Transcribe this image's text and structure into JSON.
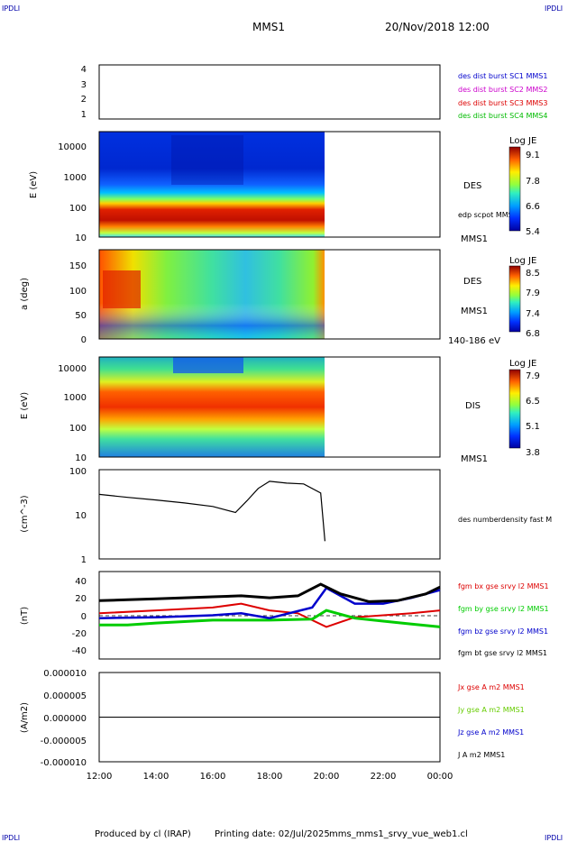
{
  "corner_labels": {
    "tl": "IPDLI",
    "tr": "IPDLI",
    "bl": "IPDLI",
    "br": "IPDLI"
  },
  "header": {
    "spacecraft": "MMS1",
    "datetime": "20/Nov/2018 12:00"
  },
  "footer": {
    "produced_by": "Produced by cl (IRAP)",
    "printing_date": "Printing date: 02/Jul/2025",
    "filename": "mms_mms1_srvy_vue_web1.cl"
  },
  "time_axis": {
    "ticks": [
      "12:00",
      "14:00",
      "16:00",
      "18:00",
      "20:00",
      "22:00",
      "00:00"
    ],
    "start_hour": 12,
    "end_hour": 24
  },
  "panels": {
    "burst": {
      "yticks": [
        "4",
        "3",
        "2",
        "1"
      ],
      "legend": [
        {
          "label": "des dist burst SC1 MMS1",
          "color": "#0000cc"
        },
        {
          "label": "des dist burst SC2 MMS2",
          "color": "#cc00cc"
        },
        {
          "label": "des dist burst SC3 MMS3",
          "color": "#dd0000"
        },
        {
          "label": "des dist burst SC4 MMS4",
          "color": "#00bb00"
        }
      ]
    },
    "des_energy": {
      "ylabel": "E (eV)",
      "yticks": [
        "10000",
        "1000",
        "100",
        "10"
      ],
      "label": "DES",
      "label2": "edp scpot MMS1",
      "label3": "MMS1",
      "colorbar": {
        "title": "Log JE",
        "ticks": [
          "9.1",
          "7.8",
          "6.6",
          "5.4"
        ],
        "min": 5.4,
        "max": 9.1
      }
    },
    "des_pitch": {
      "ylabel": "a (deg)",
      "yticks": [
        "150",
        "100",
        "50",
        "0"
      ],
      "label": "DES",
      "label2": "MMS1",
      "label3": "140-186 eV",
      "colorbar": {
        "title": "Log JE",
        "ticks": [
          "8.5",
          "7.9",
          "7.4",
          "6.8"
        ],
        "min": 6.8,
        "max": 8.5
      }
    },
    "dis_energy": {
      "ylabel": "E (eV)",
      "yticks": [
        "10000",
        "1000",
        "100",
        "10"
      ],
      "label": "DIS",
      "label2": "MMS1",
      "colorbar": {
        "title": "Log JE",
        "ticks": [
          "7.9",
          "6.5",
          "5.1",
          "3.8"
        ],
        "min": 3.8,
        "max": 7.9
      }
    },
    "density": {
      "ylabel": "(cm^-3)",
      "yticks": [
        "100",
        "10",
        "1"
      ],
      "legend": "des numberdensity fast M"
    },
    "bfield": {
      "ylabel": "(nT)",
      "yticks": [
        "40",
        "20",
        "0",
        "-20",
        "-40"
      ],
      "legend": [
        {
          "label": "fgm bx gse srvy l2 MMS1",
          "color": "#dd0000"
        },
        {
          "label": "fgm by gse srvy l2 MMS1",
          "color": "#00cc00"
        },
        {
          "label": "fgm bz gse srvy l2 MMS1",
          "color": "#0000cc"
        },
        {
          "label": "fgm bt gse srvy l2 MMS1",
          "color": "#000000"
        }
      ]
    },
    "current": {
      "ylabel": "(A/m2)",
      "yticks": [
        "0.000010",
        "0.000005",
        "0.000000",
        "-0.000005",
        "-0.000010"
      ],
      "legend": [
        {
          "label": "Jx gse A m2 MMS1",
          "color": "#dd0000"
        },
        {
          "label": "Jy gse A m2 MMS1",
          "color": "#66cc00"
        },
        {
          "label": "Jz gse A m2 MMS1",
          "color": "#0000cc"
        },
        {
          "label": "J A m2 MMS1",
          "color": "#000000"
        }
      ]
    }
  },
  "chart_data": [
    {
      "type": "line",
      "name": "density",
      "x": [
        12.0,
        13.0,
        14.0,
        15.0,
        16.0,
        16.8,
        17.2,
        17.6,
        18.0,
        18.6,
        19.2,
        19.8,
        19.95
      ],
      "values": [
        28,
        24,
        21,
        18,
        15,
        11,
        20,
        38,
        55,
        50,
        48,
        30,
        2.5
      ],
      "ylim": [
        1,
        100
      ],
      "scale": "log"
    },
    {
      "type": "line",
      "name": "fgm bt gse srvy l2 MMS1",
      "x": [
        12.0,
        13.0,
        14.0,
        15.0,
        16.0,
        17.0,
        18.0,
        19.0,
        19.8,
        20.5,
        21.5,
        22.5,
        23.5,
        24.0
      ],
      "values": [
        15,
        16,
        17,
        18,
        19,
        20,
        18,
        20,
        32,
        22,
        14,
        15,
        22,
        29
      ],
      "ylim": [
        -45,
        45
      ]
    },
    {
      "type": "line",
      "name": "fgm bx gse srvy l2 MMS1",
      "x": [
        12.0,
        14.0,
        16.0,
        17.0,
        18.0,
        19.0,
        20.0,
        21.0,
        22.0,
        23.0,
        24.0
      ],
      "values": [
        2,
        5,
        8,
        12,
        5,
        2,
        -12,
        -2,
        0,
        2,
        5
      ]
    },
    {
      "type": "line",
      "name": "fgm by gse srvy l2 MMS1",
      "x": [
        12.0,
        13.0,
        14.0,
        16.0,
        18.0,
        19.5,
        20.0,
        21.0,
        22.0,
        23.0,
        24.0
      ],
      "values": [
        -10,
        -10,
        -8,
        -5,
        -5,
        -4,
        5,
        -3,
        -6,
        -9,
        -12
      ]
    },
    {
      "type": "line",
      "name": "fgm bz gse srvy l2 MMS1",
      "x": [
        12.0,
        14.0,
        16.0,
        17.0,
        18.0,
        19.5,
        20.0,
        21.0,
        22.0,
        23.0,
        24.0
      ],
      "values": [
        -3,
        -2,
        0,
        2,
        -3,
        8,
        28,
        12,
        12,
        18,
        26
      ]
    },
    {
      "type": "line",
      "name": "J A m2 MMS1",
      "x": [
        12.0,
        24.0
      ],
      "values": [
        0.0,
        0.0
      ],
      "ylim": [
        -1e-05,
        1e-05
      ]
    }
  ]
}
